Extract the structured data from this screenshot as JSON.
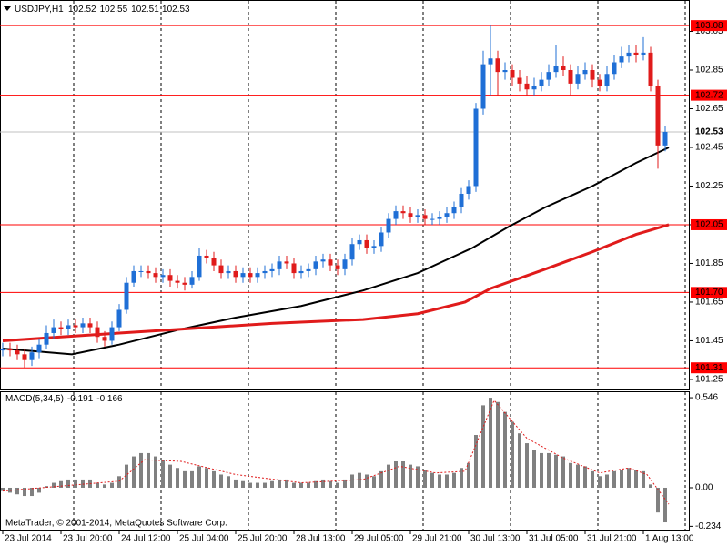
{
  "chart_data": [
    {
      "type": "candlestick",
      "title": {
        "symbol": "USDJPY,H1",
        "values": [
          102.52,
          102.55,
          102.51,
          102.53
        ]
      },
      "x": [
        0,
        2,
        4,
        6,
        8,
        10,
        12,
        14,
        16,
        18,
        20,
        22,
        24,
        26,
        28,
        30,
        32,
        34,
        36,
        38,
        40,
        42,
        44,
        46,
        48,
        50,
        52,
        54,
        56,
        58,
        60,
        62,
        64,
        66,
        68,
        70,
        72,
        74,
        76,
        78,
        80,
        82,
        84,
        86,
        88,
        90,
        92,
        94,
        96,
        98,
        100,
        102,
        104,
        106,
        108,
        110,
        112,
        114,
        116,
        118,
        120,
        122,
        124,
        126,
        128,
        130,
        132,
        134,
        136,
        138,
        140,
        142,
        144,
        146,
        148,
        150,
        152,
        154,
        156,
        158,
        160,
        162,
        164,
        166,
        168,
        170,
        172,
        174,
        176,
        178,
        180,
        182
      ],
      "open": [
        101.4,
        101.41,
        101.4,
        101.38,
        101.35,
        101.39,
        101.43,
        101.49,
        101.52,
        101.51,
        101.53,
        101.52,
        101.54,
        101.52,
        101.47,
        101.45,
        101.52,
        101.61,
        101.75,
        101.81,
        101.81,
        101.8,
        101.78,
        101.79,
        101.76,
        101.75,
        101.74,
        101.78,
        101.89,
        101.88,
        101.84,
        101.8,
        101.81,
        101.78,
        101.8,
        101.78,
        101.8,
        101.81,
        101.82,
        101.86,
        101.85,
        101.8,
        101.81,
        101.82,
        101.86,
        101.87,
        101.84,
        101.82,
        101.87,
        101.95,
        101.97,
        101.93,
        101.94,
        102.01,
        102.08,
        102.12,
        102.11,
        102.09,
        102.1,
        102.08,
        102.08,
        102.09,
        102.11,
        102.14,
        102.21,
        102.25,
        102.65,
        102.88,
        102.91,
        102.84,
        102.85,
        102.81,
        102.78,
        102.75,
        102.77,
        102.8,
        102.84,
        102.87,
        102.85,
        102.78,
        102.83,
        102.85,
        102.8,
        102.77,
        102.83,
        102.89,
        102.92,
        102.94,
        102.93,
        102.94,
        102.77,
        102.46
      ],
      "high": [
        101.44,
        101.44,
        101.43,
        101.41,
        101.42,
        101.46,
        101.53,
        101.56,
        101.55,
        101.56,
        101.56,
        101.57,
        101.57,
        101.55,
        101.5,
        101.55,
        101.64,
        101.78,
        101.84,
        101.84,
        101.84,
        101.83,
        101.82,
        101.82,
        101.79,
        101.78,
        101.81,
        101.93,
        101.92,
        101.91,
        101.87,
        101.84,
        101.84,
        101.83,
        101.83,
        101.83,
        101.84,
        101.85,
        101.89,
        101.89,
        101.88,
        101.84,
        101.85,
        101.89,
        101.9,
        101.9,
        101.87,
        101.9,
        101.98,
        102.0,
        102.0,
        101.97,
        102.04,
        102.11,
        102.15,
        102.15,
        102.14,
        102.13,
        102.13,
        102.11,
        102.12,
        102.14,
        102.17,
        102.24,
        102.28,
        102.68,
        102.95,
        103.08,
        102.95,
        102.89,
        102.88,
        102.85,
        102.82,
        102.81,
        102.84,
        102.88,
        102.98,
        102.92,
        102.88,
        102.87,
        102.89,
        102.88,
        102.83,
        102.87,
        102.93,
        102.97,
        102.98,
        102.98,
        103.02,
        102.97,
        102.8,
        102.56
      ],
      "low": [
        101.37,
        101.37,
        101.35,
        101.31,
        101.32,
        101.36,
        101.41,
        101.46,
        101.48,
        101.48,
        101.49,
        101.49,
        101.49,
        101.44,
        101.42,
        101.43,
        101.5,
        101.59,
        101.73,
        101.78,
        101.77,
        101.75,
        101.75,
        101.73,
        101.72,
        101.71,
        101.72,
        101.76,
        101.85,
        101.81,
        101.77,
        101.77,
        101.75,
        101.75,
        101.75,
        101.75,
        101.77,
        101.78,
        101.79,
        101.82,
        101.77,
        101.77,
        101.78,
        101.79,
        101.83,
        101.81,
        101.79,
        101.79,
        101.84,
        101.92,
        101.9,
        101.9,
        101.91,
        101.98,
        102.05,
        102.08,
        102.06,
        102.06,
        102.05,
        102.05,
        102.05,
        102.06,
        102.08,
        102.11,
        102.18,
        102.22,
        102.62,
        102.72,
        102.72,
        102.8,
        102.77,
        102.74,
        102.72,
        102.72,
        102.74,
        102.77,
        102.81,
        102.82,
        102.72,
        102.75,
        102.8,
        102.76,
        102.74,
        102.74,
        102.8,
        102.86,
        102.89,
        102.89,
        102.9,
        102.74,
        102.34,
        102.43
      ],
      "close": [
        101.41,
        101.4,
        101.38,
        101.35,
        101.39,
        101.43,
        101.49,
        101.52,
        101.51,
        101.53,
        101.52,
        101.54,
        101.52,
        101.47,
        101.45,
        101.52,
        101.61,
        101.75,
        101.81,
        101.81,
        101.8,
        101.78,
        101.79,
        101.76,
        101.75,
        101.74,
        101.78,
        101.89,
        101.88,
        101.84,
        101.8,
        101.81,
        101.78,
        101.8,
        101.78,
        101.8,
        101.81,
        101.82,
        101.86,
        101.85,
        101.8,
        101.81,
        101.82,
        101.86,
        101.87,
        101.84,
        101.82,
        101.87,
        101.95,
        101.97,
        101.93,
        101.94,
        102.01,
        102.08,
        102.12,
        102.11,
        102.09,
        102.1,
        102.08,
        102.08,
        102.09,
        102.11,
        102.14,
        102.21,
        102.25,
        102.65,
        102.88,
        102.91,
        102.84,
        102.85,
        102.81,
        102.78,
        102.75,
        102.77,
        102.8,
        102.84,
        102.87,
        102.85,
        102.78,
        102.83,
        102.85,
        102.8,
        102.77,
        102.83,
        102.89,
        102.92,
        102.94,
        102.93,
        102.94,
        102.77,
        102.46,
        102.53
      ],
      "up_color": "#1f6fd6",
      "down_color": "#e01b1b",
      "lines": [
        {
          "color": "#000000",
          "x": [
            0,
            19,
            32,
            49,
            64,
            82,
            99,
            114,
            129,
            139,
            149,
            162,
            174,
            183
          ],
          "values": [
            101.41,
            101.38,
            101.43,
            101.51,
            101.57,
            101.63,
            101.71,
            101.8,
            101.93,
            102.04,
            102.14,
            102.25,
            102.37,
            102.45
          ]
        },
        {
          "color": "#e01b1b",
          "x": [
            0,
            24,
            49,
            74,
            99,
            114,
            127,
            134,
            149,
            162,
            174,
            183
          ],
          "values": [
            101.45,
            101.48,
            101.51,
            101.54,
            101.56,
            101.59,
            101.65,
            101.72,
            101.82,
            101.91,
            102.0,
            102.05
          ]
        }
      ],
      "levels": [
        103.08,
        102.72,
        102.05,
        {
          "value": 101.7,
          "label": "101.70"
        },
        101.31
      ],
      "level_color": "#ff0000",
      "last": 102.53,
      "xlim": [
        -0.75,
        188.5
      ],
      "xticks": [
        {
          "value": 0,
          "label": "23 Jul 2014"
        },
        {
          "value": 16,
          "label": "23 Jul 20:00"
        },
        {
          "value": 32,
          "label": "24 Jul 12:00"
        },
        {
          "value": 48,
          "label": "25 Jul 04:00"
        },
        {
          "value": 64,
          "label": "25 Jul 20:00"
        },
        {
          "value": 80,
          "label": "28 Jul 13:00"
        },
        {
          "value": 96,
          "label": "29 Jul 05:00"
        },
        {
          "value": 112,
          "label": "29 Jul 21:00"
        },
        {
          "value": 128,
          "label": "30 Jul 13:00"
        },
        {
          "value": 144,
          "label": "31 Jul 05:00"
        },
        {
          "value": 160,
          "label": "31 Jul 21:00"
        },
        {
          "value": 176,
          "label": "1 Aug 13:00"
        }
      ],
      "ylim": [
        101.198,
        103.203
      ],
      "yticks": [
        101.25,
        101.45,
        101.65,
        101.85,
        102.05,
        102.25,
        102.45,
        102.65,
        102.85,
        103.05
      ]
    },
    {
      "type": "bar",
      "title": {
        "symbol": "MACD(5,34,5)",
        "values": [
          -0.191,
          -0.166
        ]
      },
      "x": [
        0,
        2,
        4,
        6,
        8,
        10,
        12,
        14,
        16,
        18,
        20,
        22,
        24,
        26,
        28,
        30,
        32,
        34,
        36,
        38,
        40,
        42,
        44,
        46,
        48,
        50,
        52,
        54,
        56,
        58,
        60,
        62,
        64,
        66,
        68,
        70,
        72,
        74,
        76,
        78,
        80,
        82,
        84,
        86,
        88,
        90,
        92,
        94,
        96,
        98,
        100,
        102,
        104,
        106,
        108,
        110,
        112,
        114,
        116,
        118,
        120,
        122,
        124,
        126,
        128,
        130,
        132,
        134,
        136,
        138,
        140,
        142,
        144,
        146,
        148,
        150,
        152,
        154,
        156,
        158,
        160,
        162,
        164,
        166,
        168,
        170,
        172,
        174,
        176,
        178,
        180,
        182
      ],
      "values": [
        -0.02,
        -0.03,
        -0.04,
        -0.05,
        -0.05,
        -0.03,
        0.01,
        0.03,
        0.04,
        0.05,
        0.05,
        0.05,
        0.05,
        0.03,
        0.02,
        0.03,
        0.07,
        0.14,
        0.19,
        0.21,
        0.21,
        0.19,
        0.17,
        0.14,
        0.12,
        0.1,
        0.1,
        0.13,
        0.12,
        0.1,
        0.08,
        0.07,
        0.05,
        0.04,
        0.03,
        0.03,
        0.03,
        0.04,
        0.05,
        0.05,
        0.03,
        0.03,
        0.03,
        0.04,
        0.05,
        0.04,
        0.03,
        0.05,
        0.08,
        0.09,
        0.08,
        0.07,
        0.1,
        0.14,
        0.16,
        0.16,
        0.14,
        0.13,
        0.11,
        0.09,
        0.08,
        0.08,
        0.09,
        0.12,
        0.15,
        0.32,
        0.5,
        0.546,
        0.52,
        0.46,
        0.4,
        0.33,
        0.27,
        0.23,
        0.21,
        0.21,
        0.2,
        0.19,
        0.15,
        0.14,
        0.13,
        0.1,
        0.07,
        0.08,
        0.1,
        0.11,
        0.12,
        0.11,
        0.1,
        0.02,
        -0.15,
        -0.21
      ],
      "color": "#808080",
      "signal": {
        "color": "#e01b1b",
        "x": [
          0,
          32,
          39,
          49,
          64,
          82,
          99,
          109,
          119,
          127,
          135,
          144,
          154,
          164,
          172,
          177,
          183
        ],
        "values": [
          -0.02,
          0.04,
          0.17,
          0.16,
          0.08,
          0.03,
          0.05,
          0.13,
          0.09,
          0.1,
          0.53,
          0.3,
          0.18,
          0.09,
          0.12,
          0.08,
          -0.1
        ]
      },
      "xlim": [
        -0.75,
        188.5
      ],
      "ylim": [
        -0.254,
        0.585
      ],
      "yticks": [
        {
          "value": 0.546,
          "label": "0.546"
        },
        {
          "value": 0,
          "label": "0.00"
        },
        -0.234
      ],
      "footer": "MetaTrader, © 2001-2014, MetaQuotes Software Corp."
    }
  ]
}
